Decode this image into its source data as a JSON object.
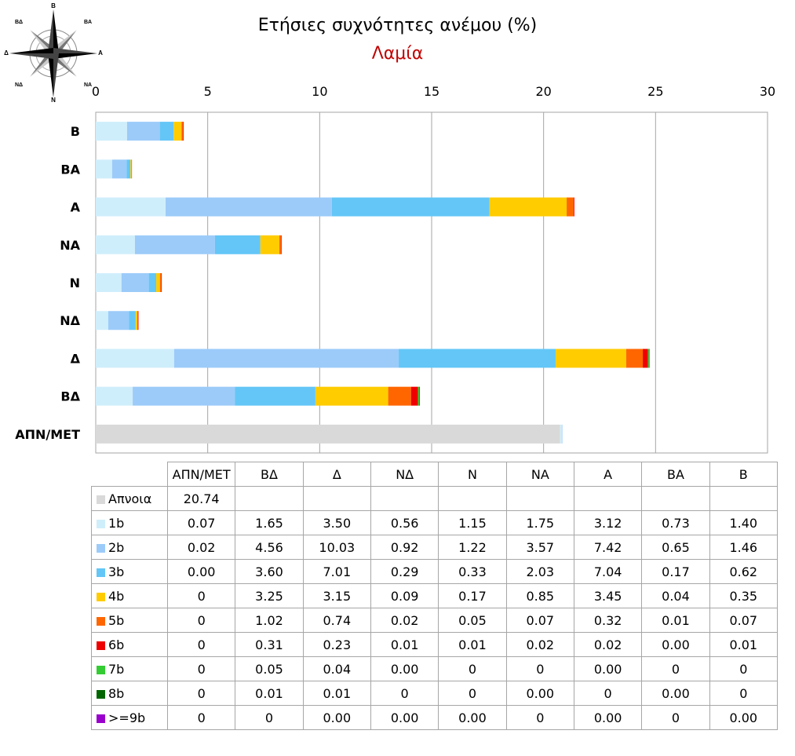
{
  "title": "Ετήσιες συχνότητες ανέμου (%)",
  "subtitle": "Λαμία",
  "compass": {
    "n": "Β",
    "ne": "ΒΑ",
    "e": "Α",
    "se": "ΝΑ",
    "s": "Ν",
    "sw": "ΝΔ",
    "w": "Δ",
    "nw": "ΒΔ"
  },
  "chart_data": {
    "type": "bar",
    "orientation": "horizontal",
    "stacked": true,
    "xlim": [
      0,
      30
    ],
    "xticks": [
      "0",
      "5",
      "10",
      "15",
      "20",
      "25",
      "30"
    ],
    "grid": true,
    "legend": "data table below chart",
    "categories": [
      "Β",
      "ΒΑ",
      "Α",
      "ΝΑ",
      "Ν",
      "ΝΔ",
      "Δ",
      "ΒΔ",
      "ΑΠΝ/ΜΕΤ"
    ],
    "table_columns": [
      "ΑΠΝ/ΜΕΤ",
      "ΒΔ",
      "Δ",
      "ΝΔ",
      "Ν",
      "ΝΑ",
      "Α",
      "ΒΑ",
      "Β"
    ],
    "series": [
      {
        "name": "Απνοια",
        "color": "#d9d9d9",
        "values": [
          0,
          0,
          0,
          0,
          0,
          0,
          0,
          0,
          20.74
        ],
        "cells": [
          "20.74",
          "",
          "",
          "",
          "",
          "",
          "",
          "",
          ""
        ]
      },
      {
        "name": "1b",
        "color": "#cfeefb",
        "values": [
          1.4,
          0.73,
          3.12,
          1.75,
          1.15,
          0.56,
          3.5,
          1.65,
          0.07
        ],
        "cells": [
          "0.07",
          "1.65",
          "3.50",
          "0.56",
          "1.15",
          "1.75",
          "3.12",
          "0.73",
          "1.40"
        ]
      },
      {
        "name": "2b",
        "color": "#9ccbf9",
        "values": [
          1.46,
          0.65,
          7.42,
          3.57,
          1.22,
          0.92,
          10.03,
          4.56,
          0.02
        ],
        "cells": [
          "0.02",
          "4.56",
          "10.03",
          "0.92",
          "1.22",
          "3.57",
          "7.42",
          "0.65",
          "1.46"
        ]
      },
      {
        "name": "3b",
        "color": "#63c6f7",
        "values": [
          0.62,
          0.17,
          7.04,
          2.03,
          0.33,
          0.29,
          7.01,
          3.6,
          0.0
        ],
        "cells": [
          "0.00",
          "3.60",
          "7.01",
          "0.29",
          "0.33",
          "2.03",
          "7.04",
          "0.17",
          "0.62"
        ]
      },
      {
        "name": "4b",
        "color": "#ffcc00",
        "values": [
          0.35,
          0.04,
          3.45,
          0.85,
          0.17,
          0.09,
          3.15,
          3.25,
          0
        ],
        "cells": [
          "0",
          "3.25",
          "3.15",
          "0.09",
          "0.17",
          "0.85",
          "3.45",
          "0.04",
          "0.35"
        ]
      },
      {
        "name": "5b",
        "color": "#ff6600",
        "values": [
          0.07,
          0.01,
          0.32,
          0.07,
          0.05,
          0.02,
          0.74,
          1.02,
          0
        ],
        "cells": [
          "0",
          "1.02",
          "0.74",
          "0.02",
          "0.05",
          "0.07",
          "0.32",
          "0.01",
          "0.07"
        ]
      },
      {
        "name": "6b",
        "color": "#ee0000",
        "values": [
          0.01,
          0.0,
          0.02,
          0.02,
          0.01,
          0.01,
          0.23,
          0.31,
          0
        ],
        "cells": [
          "0",
          "0.31",
          "0.23",
          "0.01",
          "0.01",
          "0.02",
          "0.02",
          "0.00",
          "0.01"
        ]
      },
      {
        "name": "7b",
        "color": "#33cc33",
        "values": [
          0,
          0.0,
          0.0,
          0,
          0,
          0.0,
          0.04,
          0.05,
          0
        ],
        "cells": [
          "0",
          "0.05",
          "0.04",
          "0.00",
          "0",
          "0",
          "0.00",
          "0",
          "0"
        ]
      },
      {
        "name": "8b",
        "color": "#006600",
        "values": [
          0,
          0.0,
          0,
          0.0,
          0,
          0,
          0.01,
          0.01,
          0
        ],
        "cells": [
          "0",
          "0.01",
          "0.01",
          "0",
          "0",
          "0.00",
          "0",
          "0.00",
          "0"
        ]
      },
      {
        "name": ">=9b",
        "color": "#9900cc",
        "values": [
          0.0,
          0,
          0.0,
          0,
          0.0,
          0.0,
          0.0,
          0,
          0
        ],
        "cells": [
          "0",
          "0",
          "0.00",
          "0.00",
          "0.00",
          "0",
          "0.00",
          "0",
          "0.00"
        ]
      }
    ]
  }
}
